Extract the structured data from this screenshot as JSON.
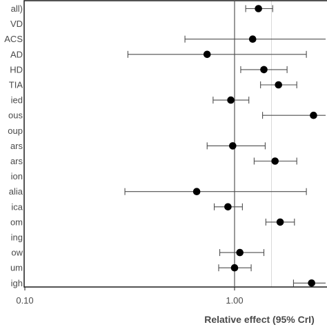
{
  "chart_data": {
    "type": "forest",
    "x_scale": "log",
    "xlim": [
      0.1,
      3.0
    ],
    "xlabel": "Relative effect (95% CrI)",
    "x_ticks": [
      {
        "value": 0.1,
        "label": "0.10"
      },
      {
        "value": 1.0,
        "label": "1.00"
      }
    ],
    "reference_line": 1.0,
    "grid_x": [
      1.5
    ],
    "rows": [
      {
        "label": "all)",
        "estimate": 1.3,
        "lower": 1.13,
        "upper": 1.52
      },
      {
        "label": "VD",
        "estimate": null,
        "lower": null,
        "upper": null
      },
      {
        "label": "ACS",
        "estimate": 1.22,
        "lower": 0.58,
        "upper": 2.95
      },
      {
        "label": "AD",
        "estimate": 0.74,
        "lower": 0.31,
        "upper": 2.2
      },
      {
        "label": "HD",
        "estimate": 1.38,
        "lower": 1.07,
        "upper": 1.78
      },
      {
        "label": "TIA",
        "estimate": 1.62,
        "lower": 1.33,
        "upper": 1.98
      },
      {
        "label": "ied",
        "estimate": 0.96,
        "lower": 0.79,
        "upper": 1.17
      },
      {
        "label": "ous",
        "estimate": 2.38,
        "lower": 1.36,
        "upper": 3.0
      },
      {
        "label": "oup",
        "estimate": null,
        "lower": null,
        "upper": null
      },
      {
        "label": "ars",
        "estimate": 0.98,
        "lower": 0.74,
        "upper": 1.4
      },
      {
        "label": "ars",
        "estimate": 1.56,
        "lower": 1.24,
        "upper": 1.98
      },
      {
        "label": "ion",
        "estimate": null,
        "lower": null,
        "upper": null
      },
      {
        "label": "alia",
        "estimate": 0.66,
        "lower": 0.3,
        "upper": 2.2
      },
      {
        "label": "ica",
        "estimate": 0.93,
        "lower": 0.8,
        "upper": 1.09
      },
      {
        "label": "om",
        "estimate": 1.65,
        "lower": 1.41,
        "upper": 1.93
      },
      {
        "label": "ing",
        "estimate": null,
        "lower": null,
        "upper": null
      },
      {
        "label": "ow",
        "estimate": 1.06,
        "lower": 0.85,
        "upper": 1.38
      },
      {
        "label": "um",
        "estimate": 1.0,
        "lower": 0.84,
        "upper": 1.2
      },
      {
        "label": "igh",
        "estimate": 2.33,
        "lower": 1.91,
        "upper": 2.8
      }
    ]
  }
}
